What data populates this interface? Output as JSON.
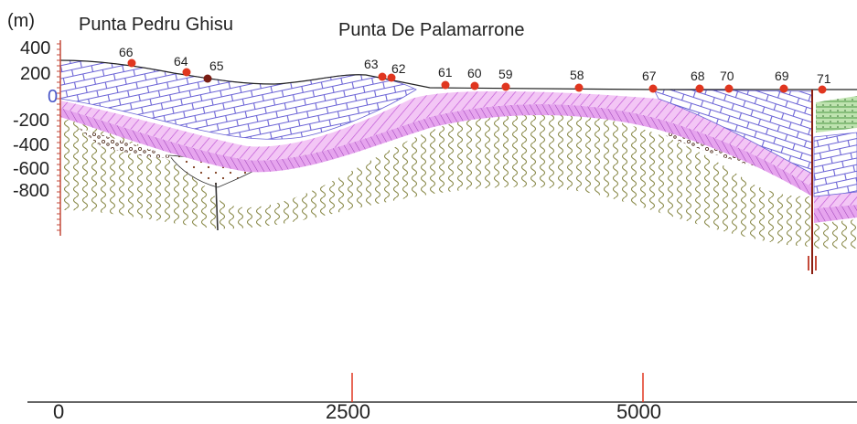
{
  "header": {
    "unit": "(m)",
    "places": [
      "Punta Pedru Ghisu",
      "Punta De Palamarrone"
    ]
  },
  "y_axis": {
    "ticks": [
      "400",
      "200",
      "0",
      "-200",
      "-400",
      "-600",
      "-800"
    ]
  },
  "x_axis": {
    "ticks": [
      "0",
      "2500",
      "5000"
    ]
  },
  "points": [
    {
      "label": "66",
      "dark": false
    },
    {
      "label": "64",
      "dark": false
    },
    {
      "label": "65",
      "dark": true
    },
    {
      "label": "63",
      "dark": false
    },
    {
      "label": "62",
      "dark": false
    },
    {
      "label": "61",
      "dark": false
    },
    {
      "label": "60",
      "dark": false
    },
    {
      "label": "59",
      "dark": false
    },
    {
      "label": "58",
      "dark": false
    },
    {
      "label": "67",
      "dark": false
    },
    {
      "label": "68",
      "dark": false
    },
    {
      "label": "70",
      "dark": false
    },
    {
      "label": "69",
      "dark": false
    },
    {
      "label": "71",
      "dark": false
    }
  ],
  "colors": {
    "limestone": "#6b63d6",
    "pink": "#d77be3",
    "magenta": "#b86ad6",
    "schist": "#8a8a4a",
    "marker": "#e0361f",
    "axis": "#c44a3a",
    "fault": "#8a1e10",
    "green": "#7bbf6a"
  }
}
